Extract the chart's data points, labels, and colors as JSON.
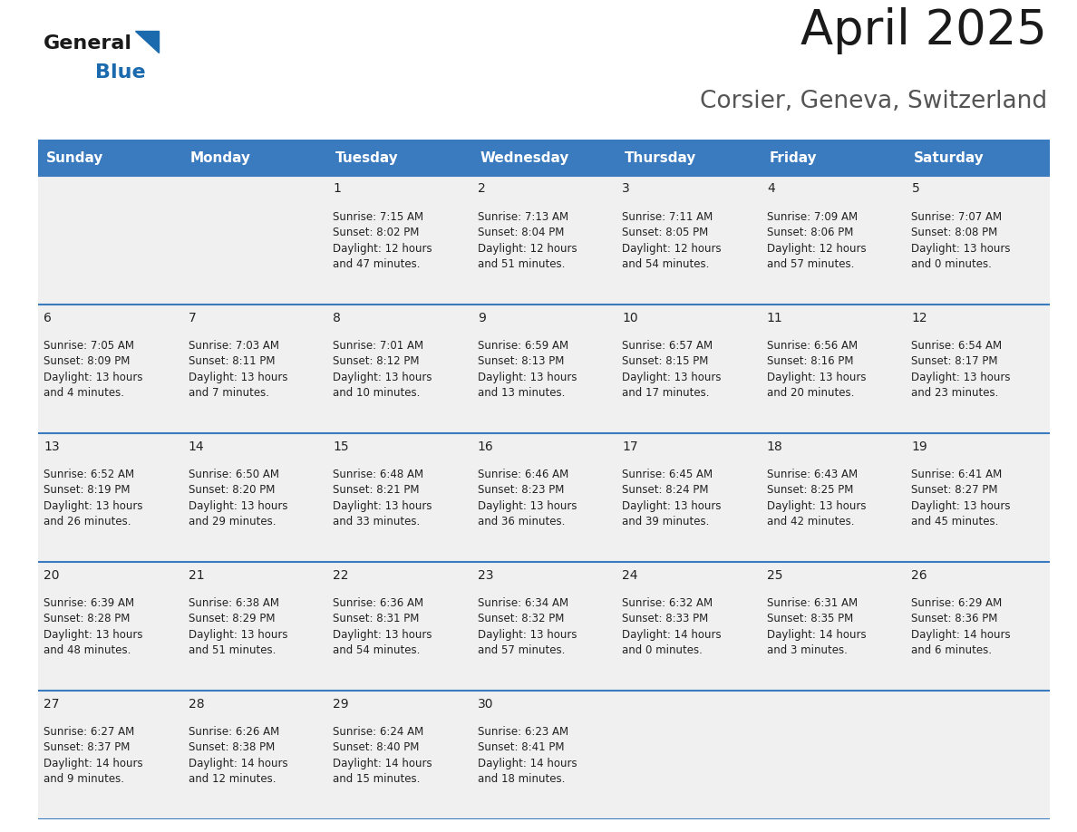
{
  "title": "April 2025",
  "subtitle": "Corsier, Geneva, Switzerland",
  "header_bg": "#3a7abf",
  "header_text_color": "#ffffff",
  "row_bg": "#f0f0f0",
  "border_color": "#3a7abf",
  "day_headers": [
    "Sunday",
    "Monday",
    "Tuesday",
    "Wednesday",
    "Thursday",
    "Friday",
    "Saturday"
  ],
  "calendar_data": [
    [
      "",
      "",
      "1\nSunrise: 7:15 AM\nSunset: 8:02 PM\nDaylight: 12 hours\nand 47 minutes.",
      "2\nSunrise: 7:13 AM\nSunset: 8:04 PM\nDaylight: 12 hours\nand 51 minutes.",
      "3\nSunrise: 7:11 AM\nSunset: 8:05 PM\nDaylight: 12 hours\nand 54 minutes.",
      "4\nSunrise: 7:09 AM\nSunset: 8:06 PM\nDaylight: 12 hours\nand 57 minutes.",
      "5\nSunrise: 7:07 AM\nSunset: 8:08 PM\nDaylight: 13 hours\nand 0 minutes."
    ],
    [
      "6\nSunrise: 7:05 AM\nSunset: 8:09 PM\nDaylight: 13 hours\nand 4 minutes.",
      "7\nSunrise: 7:03 AM\nSunset: 8:11 PM\nDaylight: 13 hours\nand 7 minutes.",
      "8\nSunrise: 7:01 AM\nSunset: 8:12 PM\nDaylight: 13 hours\nand 10 minutes.",
      "9\nSunrise: 6:59 AM\nSunset: 8:13 PM\nDaylight: 13 hours\nand 13 minutes.",
      "10\nSunrise: 6:57 AM\nSunset: 8:15 PM\nDaylight: 13 hours\nand 17 minutes.",
      "11\nSunrise: 6:56 AM\nSunset: 8:16 PM\nDaylight: 13 hours\nand 20 minutes.",
      "12\nSunrise: 6:54 AM\nSunset: 8:17 PM\nDaylight: 13 hours\nand 23 minutes."
    ],
    [
      "13\nSunrise: 6:52 AM\nSunset: 8:19 PM\nDaylight: 13 hours\nand 26 minutes.",
      "14\nSunrise: 6:50 AM\nSunset: 8:20 PM\nDaylight: 13 hours\nand 29 minutes.",
      "15\nSunrise: 6:48 AM\nSunset: 8:21 PM\nDaylight: 13 hours\nand 33 minutes.",
      "16\nSunrise: 6:46 AM\nSunset: 8:23 PM\nDaylight: 13 hours\nand 36 minutes.",
      "17\nSunrise: 6:45 AM\nSunset: 8:24 PM\nDaylight: 13 hours\nand 39 minutes.",
      "18\nSunrise: 6:43 AM\nSunset: 8:25 PM\nDaylight: 13 hours\nand 42 minutes.",
      "19\nSunrise: 6:41 AM\nSunset: 8:27 PM\nDaylight: 13 hours\nand 45 minutes."
    ],
    [
      "20\nSunrise: 6:39 AM\nSunset: 8:28 PM\nDaylight: 13 hours\nand 48 minutes.",
      "21\nSunrise: 6:38 AM\nSunset: 8:29 PM\nDaylight: 13 hours\nand 51 minutes.",
      "22\nSunrise: 6:36 AM\nSunset: 8:31 PM\nDaylight: 13 hours\nand 54 minutes.",
      "23\nSunrise: 6:34 AM\nSunset: 8:32 PM\nDaylight: 13 hours\nand 57 minutes.",
      "24\nSunrise: 6:32 AM\nSunset: 8:33 PM\nDaylight: 14 hours\nand 0 minutes.",
      "25\nSunrise: 6:31 AM\nSunset: 8:35 PM\nDaylight: 14 hours\nand 3 minutes.",
      "26\nSunrise: 6:29 AM\nSunset: 8:36 PM\nDaylight: 14 hours\nand 6 minutes."
    ],
    [
      "27\nSunrise: 6:27 AM\nSunset: 8:37 PM\nDaylight: 14 hours\nand 9 minutes.",
      "28\nSunrise: 6:26 AM\nSunset: 8:38 PM\nDaylight: 14 hours\nand 12 minutes.",
      "29\nSunrise: 6:24 AM\nSunset: 8:40 PM\nDaylight: 14 hours\nand 15 minutes.",
      "30\nSunrise: 6:23 AM\nSunset: 8:41 PM\nDaylight: 14 hours\nand 18 minutes.",
      "",
      "",
      ""
    ]
  ],
  "logo_color_general": "#1a1a1a",
  "logo_color_blue": "#1a6aad",
  "title_fontsize": 38,
  "subtitle_fontsize": 19,
  "header_fontsize": 11,
  "cell_day_fontsize": 10,
  "cell_info_fontsize": 8.5
}
